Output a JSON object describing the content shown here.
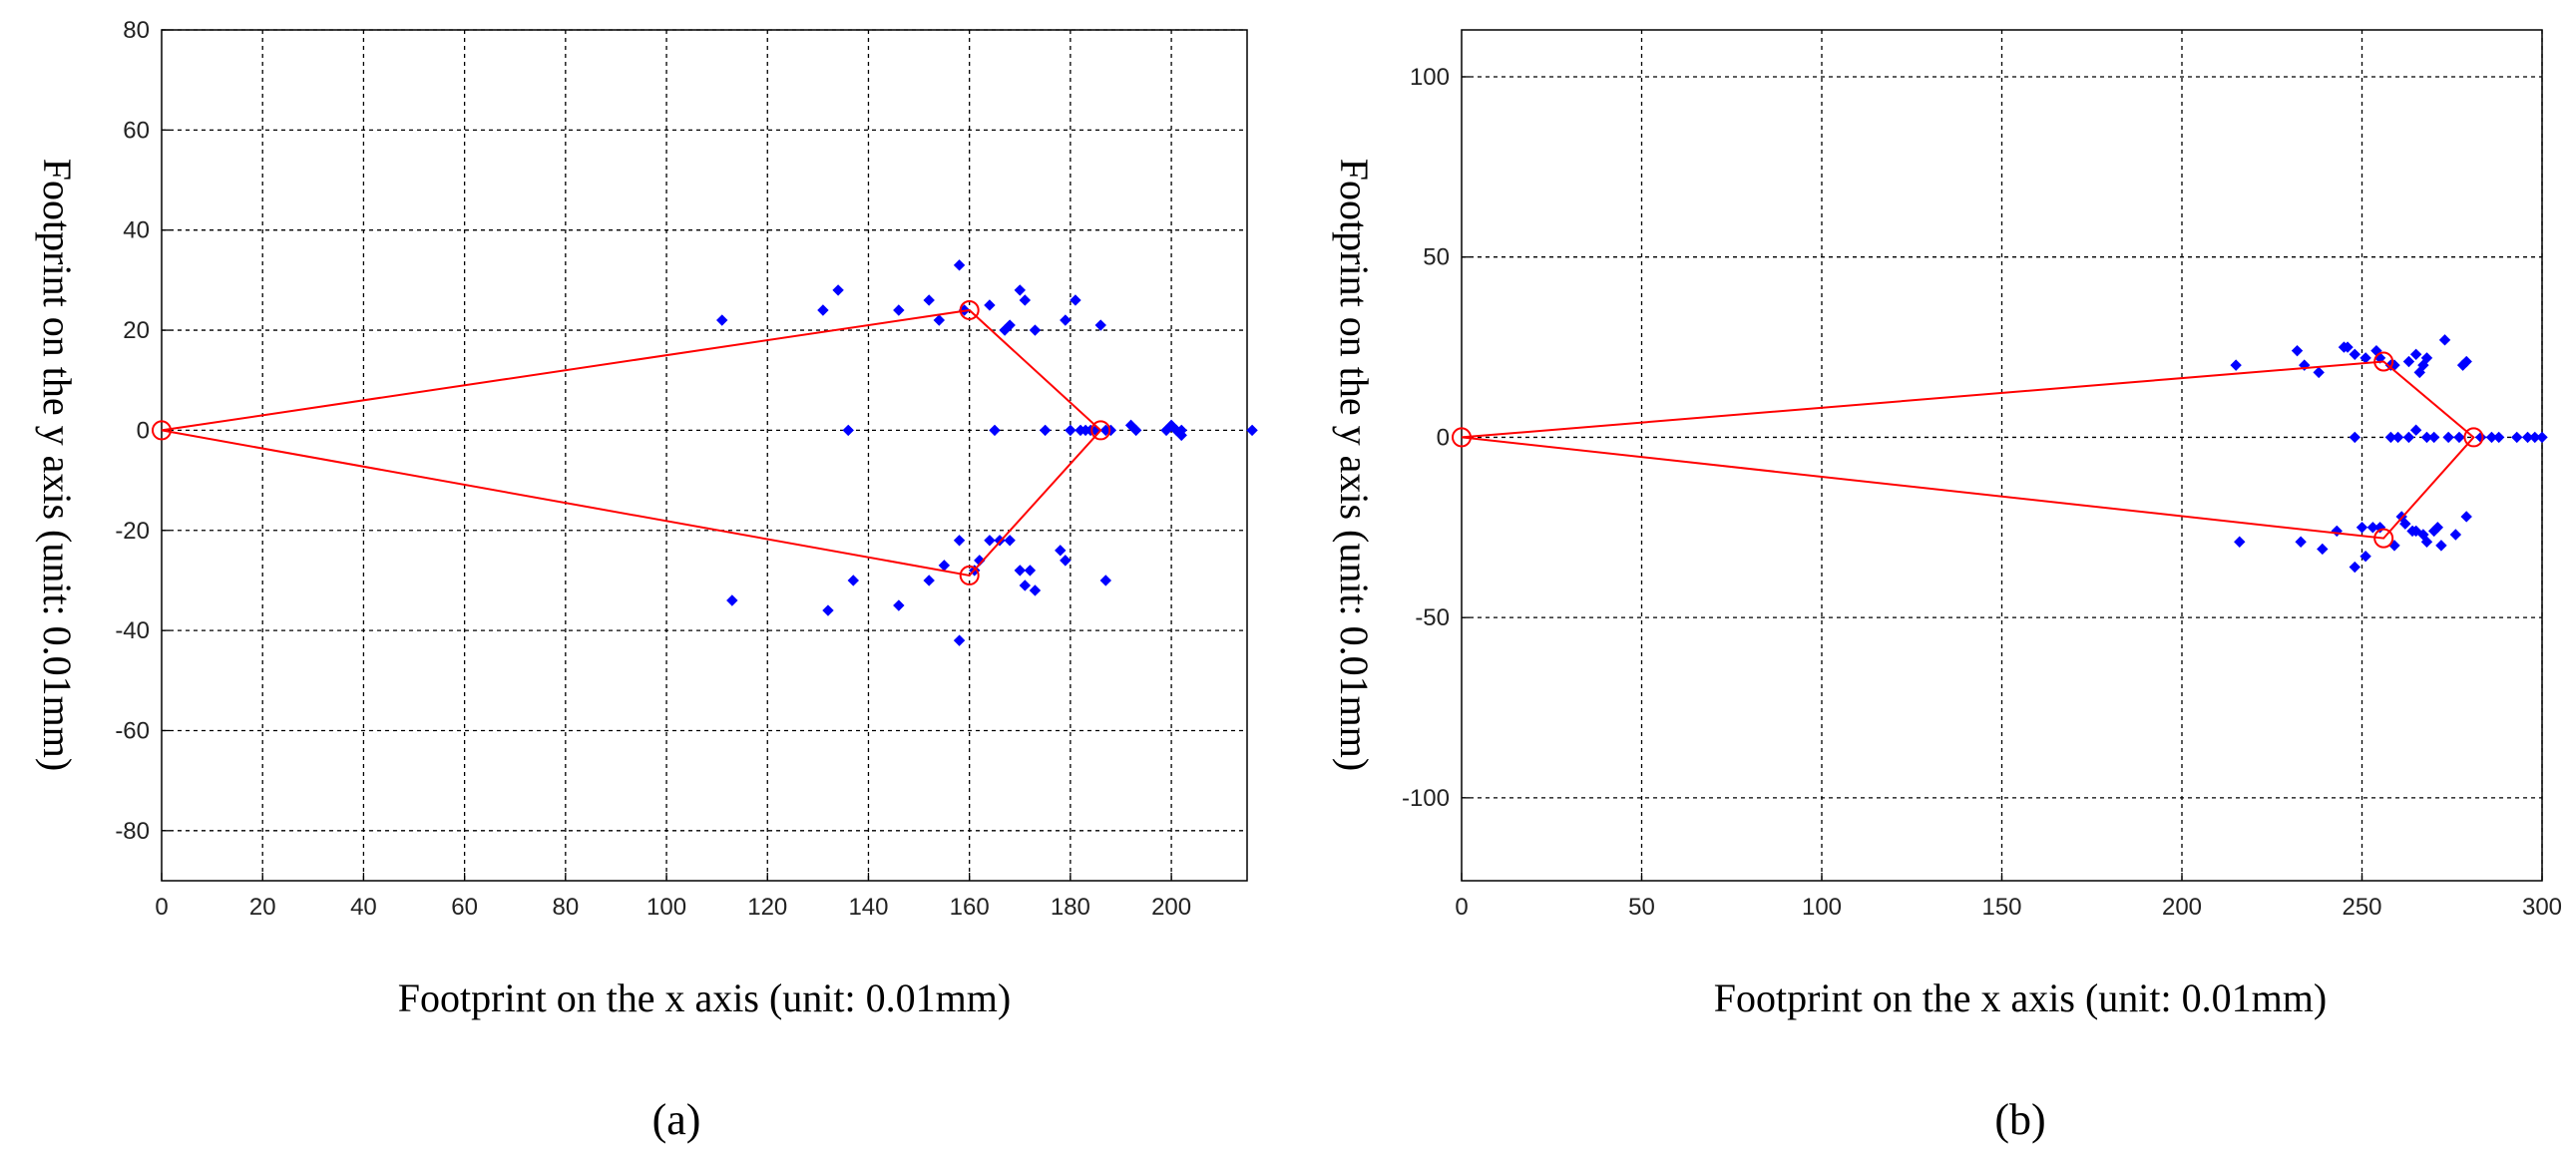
{
  "chart_data": [
    {
      "type": "scatter",
      "panel": "a",
      "panel_label": "(a)",
      "title": "",
      "xlabel": "Footprint on the x axis (unit: 0.01mm)",
      "ylabel": "Footprint on the y axis (unit: 0.01mm)",
      "xlim": [
        0,
        215
      ],
      "ylim": [
        -90,
        80
      ],
      "xticks": [
        0,
        20,
        40,
        60,
        80,
        100,
        120,
        140,
        160,
        180,
        200
      ],
      "yticks": [
        80,
        60,
        40,
        20,
        0,
        -20,
        -40,
        -60,
        -80
      ],
      "grid": true,
      "series": [
        {
          "name": "footprint points",
          "color": "#0000ff",
          "marker": "diamond",
          "points": [
            [
              111,
              22
            ],
            [
              131,
              24
            ],
            [
              134,
              28
            ],
            [
              136,
              0
            ],
            [
              137,
              -30
            ],
            [
              113,
              -34
            ],
            [
              132,
              -36
            ],
            [
              146,
              24
            ],
            [
              146,
              -35
            ],
            [
              152,
              26
            ],
            [
              152,
              -30
            ],
            [
              154,
              22
            ],
            [
              155,
              -27
            ],
            [
              158,
              33
            ],
            [
              158,
              -22
            ],
            [
              158,
              -42
            ],
            [
              159,
              24
            ],
            [
              161,
              -28
            ],
            [
              162,
              -26
            ],
            [
              164,
              25
            ],
            [
              164,
              -22
            ],
            [
              165,
              0
            ],
            [
              166,
              -22
            ],
            [
              167,
              20
            ],
            [
              168,
              21
            ],
            [
              168,
              -22
            ],
            [
              170,
              28
            ],
            [
              170,
              -28
            ],
            [
              171,
              26
            ],
            [
              171,
              -31
            ],
            [
              172,
              -28
            ],
            [
              173,
              20
            ],
            [
              173,
              -32
            ],
            [
              175,
              0
            ],
            [
              178,
              -24
            ],
            [
              179,
              22
            ],
            [
              179,
              -26
            ],
            [
              180,
              0
            ],
            [
              181,
              26
            ],
            [
              182,
              0
            ],
            [
              183,
              0
            ],
            [
              184,
              0
            ],
            [
              185,
              0
            ],
            [
              186,
              21
            ],
            [
              187,
              0
            ],
            [
              187,
              -30
            ],
            [
              188,
              0
            ],
            [
              192,
              1
            ],
            [
              193,
              0
            ],
            [
              199,
              0
            ],
            [
              200,
              1
            ],
            [
              201,
              0
            ],
            [
              202,
              -1
            ],
            [
              202,
              0
            ],
            [
              216,
              0
            ]
          ]
        },
        {
          "name": "fitted outline",
          "color": "#ff0000",
          "marker": "circle",
          "points": [
            [
              0,
              0
            ],
            [
              160,
              24
            ],
            [
              186,
              0
            ],
            [
              160,
              -29
            ],
            [
              0,
              0
            ]
          ]
        }
      ]
    },
    {
      "type": "scatter",
      "panel": "b",
      "panel_label": "(b)",
      "title": "",
      "xlabel": "Footprint on the x axis (unit: 0.01mm)",
      "ylabel": "Footprint on the y axis (unit: 0.01mm)",
      "xlim": [
        0,
        300
      ],
      "ylim": [
        -123,
        113
      ],
      "xticks": [
        0,
        50,
        100,
        150,
        200,
        250,
        300
      ],
      "yticks": [
        100,
        50,
        0,
        -50,
        -100
      ],
      "grid": true,
      "series": [
        {
          "name": "footprint points",
          "color": "#0000ff",
          "marker": "diamond",
          "points": [
            [
              215,
              20
            ],
            [
              216,
              -29
            ],
            [
              232,
              24
            ],
            [
              233,
              -29
            ],
            [
              234,
              20
            ],
            [
              238,
              18
            ],
            [
              239,
              -31
            ],
            [
              243,
              -26
            ],
            [
              245,
              25
            ],
            [
              246,
              25
            ],
            [
              248,
              23
            ],
            [
              248,
              0
            ],
            [
              248,
              -36
            ],
            [
              250,
              -25
            ],
            [
              251,
              22
            ],
            [
              251,
              -33
            ],
            [
              253,
              -25
            ],
            [
              254,
              24
            ],
            [
              255,
              22
            ],
            [
              255,
              -25
            ],
            [
              258,
              20
            ],
            [
              258,
              0
            ],
            [
              259,
              20
            ],
            [
              259,
              -30
            ],
            [
              260,
              0
            ],
            [
              261,
              -22
            ],
            [
              262,
              -24
            ],
            [
              263,
              21
            ],
            [
              263,
              0
            ],
            [
              264,
              -26
            ],
            [
              265,
              23
            ],
            [
              265,
              2
            ],
            [
              265,
              -26
            ],
            [
              266,
              18
            ],
            [
              267,
              20
            ],
            [
              267,
              -27
            ],
            [
              268,
              22
            ],
            [
              268,
              -29
            ],
            [
              268,
              0
            ],
            [
              270,
              0
            ],
            [
              270,
              -26
            ],
            [
              271,
              -25
            ],
            [
              272,
              -30
            ],
            [
              273,
              27
            ],
            [
              274,
              0
            ],
            [
              276,
              -27
            ],
            [
              277,
              0
            ],
            [
              278,
              20
            ],
            [
              279,
              21
            ],
            [
              279,
              -22
            ],
            [
              283,
              0
            ],
            [
              286,
              0
            ],
            [
              288,
              0
            ],
            [
              293,
              0
            ],
            [
              296,
              0
            ],
            [
              298,
              0
            ],
            [
              300,
              0
            ]
          ]
        },
        {
          "name": "fitted outline",
          "color": "#ff0000",
          "marker": "circle",
          "points": [
            [
              0,
              0
            ],
            [
              256,
              21
            ],
            [
              281,
              0
            ],
            [
              256,
              -28
            ],
            [
              0,
              0
            ]
          ]
        }
      ]
    }
  ]
}
